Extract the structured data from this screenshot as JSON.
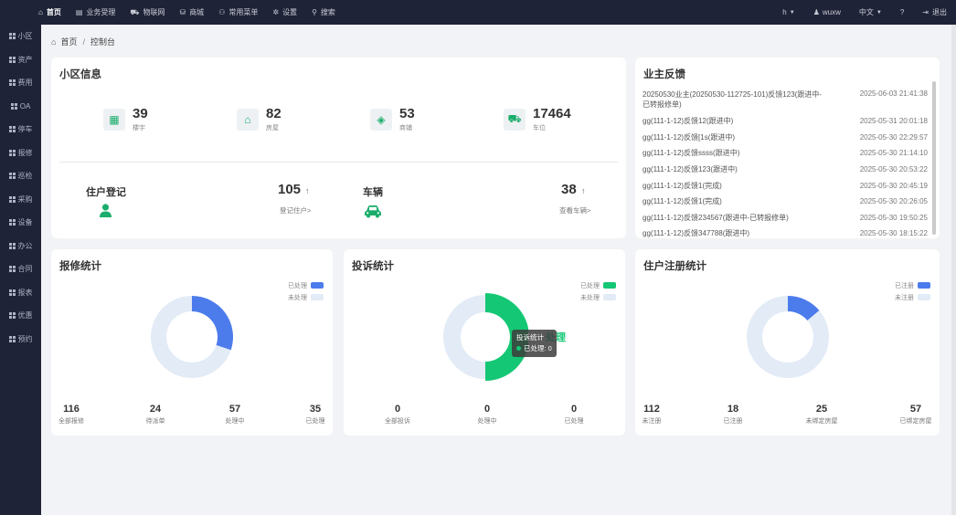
{
  "topnav": {
    "items": [
      {
        "icon": "home-icon",
        "glyph": "⌂",
        "label": "首页"
      },
      {
        "icon": "table-icon",
        "glyph": "▤",
        "label": "业务受理"
      },
      {
        "icon": "car-icon",
        "glyph": "⛟",
        "label": "物联网"
      },
      {
        "icon": "cart-icon",
        "glyph": "⛁",
        "label": "商城"
      },
      {
        "icon": "sitemap-icon",
        "glyph": "⚇",
        "label": "常用菜单"
      },
      {
        "icon": "gear-icon",
        "glyph": "✲",
        "label": "设置"
      },
      {
        "icon": "search-icon",
        "glyph": "⚲",
        "label": "搜索"
      }
    ],
    "right": {
      "user_short": "h",
      "username": "wuxw",
      "language": "中文",
      "help": "?",
      "logout": "退出"
    }
  },
  "sidebar": {
    "items": [
      "小区",
      "资产",
      "费用",
      "OA",
      "停车",
      "报修",
      "巡检",
      "采购",
      "设备",
      "办公",
      "合同",
      "报表",
      "优惠",
      "预约"
    ]
  },
  "breadcrumb": {
    "home": "首页",
    "current": "控制台"
  },
  "community": {
    "title": "小区信息",
    "stats": [
      {
        "value": "39",
        "label": "楼宇",
        "icon": "building-icon"
      },
      {
        "value": "82",
        "label": "房屋",
        "icon": "house-icon"
      },
      {
        "value": "53",
        "label": "商铺",
        "icon": "cube-icon"
      },
      {
        "value": "17464",
        "label": "车位",
        "icon": "truck-icon"
      }
    ],
    "resident": {
      "title": "住户登记",
      "value": "105",
      "arrow": "↑",
      "link": "登记住户>"
    },
    "vehicle": {
      "title": "车辆",
      "value": "38",
      "arrow": "↑",
      "link": "查看车辆>"
    }
  },
  "feedback": {
    "title": "业主反馈",
    "items": [
      {
        "text": "20250530业主(20250530-112725-101)反馈123(跟进中-已转报修单)",
        "date": "2025-06-03 21:41:38"
      },
      {
        "text": "gg(111-1-12)反馈12(跟进中)",
        "date": "2025-05-31 20:01:18"
      },
      {
        "text": "gg(111-1-12)反馈[1s(跟进中)",
        "date": "2025-05-30 22:29:57"
      },
      {
        "text": "gg(111-1-12)反馈ssss(跟进中)",
        "date": "2025-05-30 21:14:10"
      },
      {
        "text": "gg(111-1-12)反馈123(跟进中)",
        "date": "2025-05-30 20:53:22"
      },
      {
        "text": "gg(111-1-12)反馈1(完成)",
        "date": "2025-05-30 20:45:19"
      },
      {
        "text": "gg(111-1-12)反馈1(完成)",
        "date": "2025-05-30 20:26:05"
      },
      {
        "text": "gg(111-1-12)反馈234567(跟进中-已转报修单)",
        "date": "2025-05-30 19:50:25"
      },
      {
        "text": "gg(111-1-12)反馈347788(跟进中)",
        "date": "2025-05-30 18:15:22"
      }
    ]
  },
  "repair": {
    "title": "报修统计",
    "legend": [
      "已处理",
      "未处理"
    ],
    "stats": [
      {
        "value": "116",
        "label": "全部报修"
      },
      {
        "value": "24",
        "label": "待派单"
      },
      {
        "value": "57",
        "label": "处理中"
      },
      {
        "value": "35",
        "label": "已处理"
      }
    ]
  },
  "complaint": {
    "title": "投诉统计",
    "legend": [
      "已处理",
      "未处理"
    ],
    "stats": [
      {
        "value": "0",
        "label": "全部投诉"
      },
      {
        "value": "0",
        "label": "处理中"
      },
      {
        "value": "0",
        "label": "已处理"
      }
    ],
    "tooltip": {
      "title": "投诉统计",
      "line": "已处理: 0"
    },
    "overlay": "处理"
  },
  "register": {
    "title": "住户注册统计",
    "legend": [
      "已注册",
      "未注册"
    ],
    "stats": [
      {
        "value": "112",
        "label": "未注册"
      },
      {
        "value": "18",
        "label": "已注册"
      },
      {
        "value": "25",
        "label": "未绑定房屋"
      },
      {
        "value": "57",
        "label": "已绑定房屋"
      }
    ]
  },
  "chart_data": [
    {
      "type": "pie",
      "title": "报修统计",
      "categories": [
        "已处理",
        "未处理"
      ],
      "values": [
        35,
        81
      ],
      "colors": [
        "#4c7cec",
        "#e2ebf6"
      ]
    },
    {
      "type": "pie",
      "title": "投诉统计",
      "categories": [
        "已处理",
        "未处理"
      ],
      "values": [
        0.5,
        0.5
      ],
      "colors": [
        "#14c774",
        "#e2ebf6"
      ]
    },
    {
      "type": "pie",
      "title": "住户注册统计",
      "categories": [
        "已注册",
        "未注册"
      ],
      "values": [
        18,
        112
      ],
      "colors": [
        "#4c7cec",
        "#e2ebf6"
      ]
    }
  ]
}
